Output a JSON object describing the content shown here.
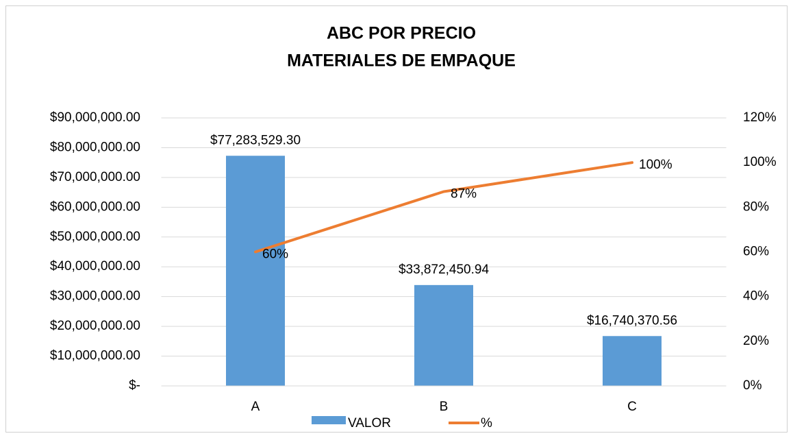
{
  "chart_data": {
    "type": "bar_line",
    "title": "ABC POR PRECIO",
    "subtitle": "MATERIALES DE EMPAQUE",
    "categories": [
      "A",
      "B",
      "C"
    ],
    "series": [
      {
        "name": "VALOR",
        "type": "bar",
        "color": "#5b9bd5",
        "values": [
          77283529.3,
          33872450.94,
          16740370.56
        ],
        "value_labels": [
          "$77,283,529.30",
          "$33,872,450.94",
          "$16,740,370.56"
        ]
      },
      {
        "name": "%",
        "type": "line",
        "axis": "y2",
        "color": "#ed7d31",
        "values": [
          60,
          87,
          100
        ],
        "value_labels": [
          "60%",
          "87%",
          "100%"
        ]
      }
    ],
    "ylim": [
      0,
      90000000
    ],
    "yticks": [
      {
        "value": 0,
        "label": "$-"
      },
      {
        "value": 10000000,
        "label": "$10,000,000.00"
      },
      {
        "value": 20000000,
        "label": "$20,000,000.00"
      },
      {
        "value": 30000000,
        "label": "$30,000,000.00"
      },
      {
        "value": 40000000,
        "label": "$40,000,000.00"
      },
      {
        "value": 50000000,
        "label": "$50,000,000.00"
      },
      {
        "value": 60000000,
        "label": "$60,000,000.00"
      },
      {
        "value": 70000000,
        "label": "$70,000,000.00"
      },
      {
        "value": 80000000,
        "label": "$80,000,000.00"
      },
      {
        "value": 90000000,
        "label": "$90,000,000.00"
      }
    ],
    "y2lim": [
      0,
      120
    ],
    "y2ticks": [
      {
        "value": 0,
        "label": "0%"
      },
      {
        "value": 20,
        "label": "20%"
      },
      {
        "value": 40,
        "label": "40%"
      },
      {
        "value": 60,
        "label": "60%"
      },
      {
        "value": 80,
        "label": "80%"
      },
      {
        "value": 100,
        "label": "100%"
      },
      {
        "value": 120,
        "label": "120%"
      }
    ],
    "grid": true,
    "legend": "bottom"
  }
}
